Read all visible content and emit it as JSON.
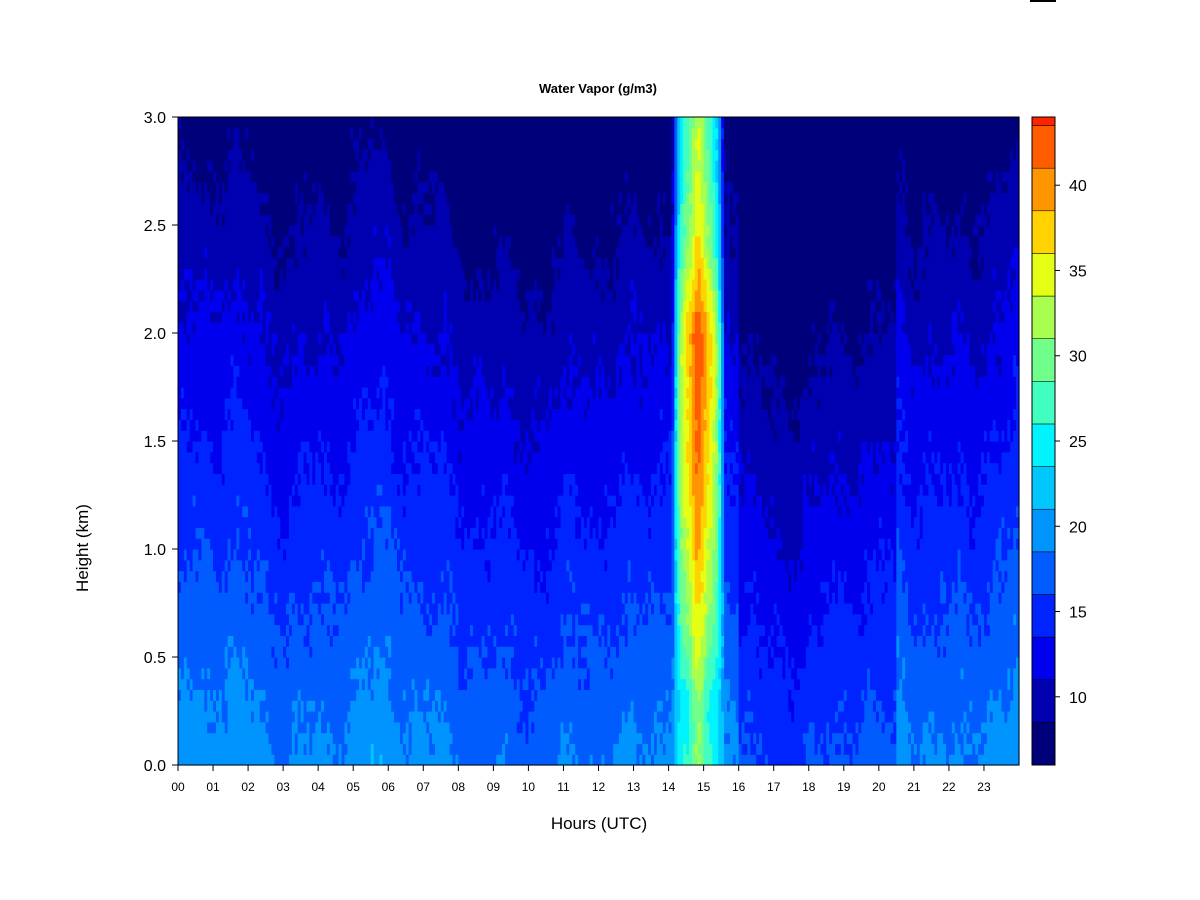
{
  "chart_data": {
    "type": "heatmap",
    "title": "Water Vapor (g/m3)",
    "xlabel": "Hours (UTC)",
    "ylabel": "Height (km)",
    "x_ticks": [
      "00",
      "01",
      "02",
      "03",
      "04",
      "05",
      "06",
      "07",
      "08",
      "09",
      "10",
      "11",
      "12",
      "13",
      "14",
      "15",
      "16",
      "17",
      "18",
      "19",
      "20",
      "21",
      "22",
      "23"
    ],
    "y_ticks": [
      "0.0",
      "0.5",
      "1.0",
      "1.5",
      "2.0",
      "2.5",
      "3.0"
    ],
    "xlim": [
      0,
      24
    ],
    "ylim": [
      0,
      3.0
    ],
    "colorbar": {
      "ticks": [
        "10",
        "15",
        "20",
        "25",
        "30",
        "35",
        "40"
      ],
      "range": [
        6,
        44
      ],
      "level_step": 2.5,
      "colors": [
        "#00007a",
        "#0000b0",
        "#0000ee",
        "#0024ff",
        "#005cff",
        "#0094ff",
        "#00c8ff",
        "#00f4ff",
        "#40ffc0",
        "#70ff8a",
        "#a8ff50",
        "#e4ff14",
        "#ffd200",
        "#ff9600",
        "#ff5c00",
        "#ff2400",
        "#e00000",
        "#a80000",
        "#700000"
      ]
    },
    "regimes": [
      {
        "hours": [
          0,
          13.8
        ],
        "description_values_g_m3": {
          "0.0-0.4km": 20,
          "0.4-1.2km": 17,
          "1.2-2.0km": 14,
          "2.0-2.6km": 11,
          "2.6-3.0km": 7
        }
      },
      {
        "hours": [
          13.8,
          16.0
        ],
        "description_values_g_m3": {
          "0.0-0.4km": 27,
          "0.4-1.0km": 33,
          "1.0-2.2km": 40,
          "2.2-3.0km": 32
        }
      },
      {
        "hours": [
          16.0,
          24
        ],
        "description_values_g_m3": {
          "0.0-0.5km": 17,
          "0.5-1.2km": 16,
          "1.2-2.0km": 14,
          "2.0-2.6km": 11,
          "2.6-3.0km": 7
        }
      }
    ],
    "peak_hour": 14.8,
    "peak_value": 42
  }
}
